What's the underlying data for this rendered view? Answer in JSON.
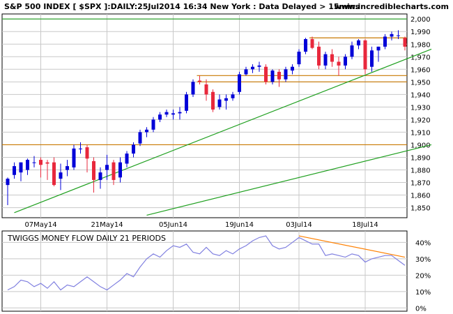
{
  "header": {
    "title": "S&P 500 INDEX [ $SPX ]:DAILY:25Jul2014 16:34 New York : Data Delayed > 15mins",
    "site": "www.incrediblecharts.com"
  },
  "colors": {
    "up": "#0000d8",
    "down": "#e8283c",
    "grid": "#c8c8c8",
    "support_line": "#c87800",
    "trend_line": "#20a020",
    "indicator_line": "#8080e0",
    "indicator_trend": "#ff8000"
  },
  "chart_data": [
    {
      "type": "candlestick",
      "ylim": [
        1842,
        2004
      ],
      "yticks": [
        1850,
        1860,
        1870,
        1880,
        1890,
        1900,
        1910,
        1920,
        1930,
        1940,
        1950,
        1960,
        1970,
        1980,
        1990,
        2000
      ],
      "ytick_labels": [
        "1,850",
        "1,860",
        "1,870",
        "1,880",
        "1,890",
        "1,900",
        "1,910",
        "1,920",
        "1,930",
        "1,940",
        "1,950",
        "1,960",
        "1,970",
        "1,980",
        "1,990",
        "2,000"
      ],
      "xtick_labels": [
        {
          "index": 5,
          "label": "07May14"
        },
        {
          "index": 15,
          "label": "21May14"
        },
        {
          "index": 25,
          "label": "05Jun14"
        },
        {
          "index": 35,
          "label": "19Jun14"
        },
        {
          "index": 44,
          "label": "03Jul14"
        },
        {
          "index": 54,
          "label": "18Jul14"
        }
      ],
      "dates_note": "",
      "candles": [
        {
          "o": 1868,
          "h": 1874,
          "l": 1852,
          "c": 1873
        },
        {
          "o": 1876,
          "h": 1886,
          "l": 1873,
          "c": 1883
        },
        {
          "o": 1878,
          "h": 1886,
          "l": 1871,
          "c": 1886
        },
        {
          "o": 1880,
          "h": 1889,
          "l": 1876,
          "c": 1888
        },
        {
          "o": 1886,
          "h": 1891,
          "l": 1882,
          "c": 1886
        },
        {
          "o": 1888,
          "h": 1890,
          "l": 1874,
          "c": 1884
        },
        {
          "o": 1886,
          "h": 1888,
          "l": 1872,
          "c": 1885
        },
        {
          "o": 1886,
          "h": 1890,
          "l": 1867,
          "c": 1868
        },
        {
          "o": 1873,
          "h": 1885,
          "l": 1864,
          "c": 1878
        },
        {
          "o": 1880,
          "h": 1888,
          "l": 1875,
          "c": 1883
        },
        {
          "o": 1882,
          "h": 1900,
          "l": 1880,
          "c": 1897
        },
        {
          "o": 1897,
          "h": 1902,
          "l": 1893,
          "c": 1897
        },
        {
          "o": 1898,
          "h": 1900,
          "l": 1878,
          "c": 1889
        },
        {
          "o": 1887,
          "h": 1890,
          "l": 1862,
          "c": 1872
        },
        {
          "o": 1872,
          "h": 1882,
          "l": 1865,
          "c": 1878
        },
        {
          "o": 1880,
          "h": 1892,
          "l": 1872,
          "c": 1884
        },
        {
          "o": 1886,
          "h": 1888,
          "l": 1868,
          "c": 1872
        },
        {
          "o": 1874,
          "h": 1890,
          "l": 1870,
          "c": 1886
        },
        {
          "o": 1885,
          "h": 1895,
          "l": 1882,
          "c": 1893
        },
        {
          "o": 1893,
          "h": 1902,
          "l": 1890,
          "c": 1900
        },
        {
          "o": 1901,
          "h": 1912,
          "l": 1899,
          "c": 1910
        },
        {
          "o": 1910,
          "h": 1914,
          "l": 1906,
          "c": 1912
        },
        {
          "o": 1912,
          "h": 1922,
          "l": 1910,
          "c": 1920
        },
        {
          "o": 1920,
          "h": 1926,
          "l": 1918,
          "c": 1924
        },
        {
          "o": 1924,
          "h": 1928,
          "l": 1922,
          "c": 1926
        },
        {
          "o": 1924,
          "h": 1928,
          "l": 1920,
          "c": 1925
        },
        {
          "o": 1925,
          "h": 1930,
          "l": 1920,
          "c": 1926
        },
        {
          "o": 1927,
          "h": 1942,
          "l": 1925,
          "c": 1940
        },
        {
          "o": 1940,
          "h": 1952,
          "l": 1938,
          "c": 1950
        },
        {
          "o": 1951,
          "h": 1955,
          "l": 1948,
          "c": 1950
        },
        {
          "o": 1948,
          "h": 1952,
          "l": 1935,
          "c": 1940
        },
        {
          "o": 1942,
          "h": 1944,
          "l": 1926,
          "c": 1928
        },
        {
          "o": 1930,
          "h": 1940,
          "l": 1928,
          "c": 1936
        },
        {
          "o": 1935,
          "h": 1940,
          "l": 1928,
          "c": 1937
        },
        {
          "o": 1937,
          "h": 1942,
          "l": 1935,
          "c": 1940
        },
        {
          "o": 1942,
          "h": 1958,
          "l": 1940,
          "c": 1956
        },
        {
          "o": 1956,
          "h": 1962,
          "l": 1955,
          "c": 1960
        },
        {
          "o": 1960,
          "h": 1964,
          "l": 1957,
          "c": 1962
        },
        {
          "o": 1962,
          "h": 1966,
          "l": 1958,
          "c": 1963
        },
        {
          "o": 1962,
          "h": 1964,
          "l": 1948,
          "c": 1950
        },
        {
          "o": 1950,
          "h": 1960,
          "l": 1948,
          "c": 1959
        },
        {
          "o": 1958,
          "h": 1960,
          "l": 1946,
          "c": 1952
        },
        {
          "o": 1952,
          "h": 1962,
          "l": 1950,
          "c": 1960
        },
        {
          "o": 1959,
          "h": 1964,
          "l": 1956,
          "c": 1962
        },
        {
          "o": 1964,
          "h": 1976,
          "l": 1962,
          "c": 1974
        },
        {
          "o": 1974,
          "h": 1985,
          "l": 1972,
          "c": 1984
        },
        {
          "o": 1984,
          "h": 1986,
          "l": 1976,
          "c": 1977
        },
        {
          "o": 1978,
          "h": 1982,
          "l": 1960,
          "c": 1963
        },
        {
          "o": 1963,
          "h": 1974,
          "l": 1960,
          "c": 1972
        },
        {
          "o": 1972,
          "h": 1976,
          "l": 1962,
          "c": 1966
        },
        {
          "o": 1966,
          "h": 1970,
          "l": 1955,
          "c": 1963
        },
        {
          "o": 1963,
          "h": 1972,
          "l": 1960,
          "c": 1970
        },
        {
          "o": 1970,
          "h": 1982,
          "l": 1968,
          "c": 1979
        },
        {
          "o": 1979,
          "h": 1984,
          "l": 1976,
          "c": 1983
        },
        {
          "o": 1983,
          "h": 1984,
          "l": 1956,
          "c": 1960
        },
        {
          "o": 1962,
          "h": 1978,
          "l": 1958,
          "c": 1975
        },
        {
          "o": 1975,
          "h": 1978,
          "l": 1966,
          "c": 1978
        },
        {
          "o": 1978,
          "h": 1988,
          "l": 1976,
          "c": 1986
        },
        {
          "o": 1986,
          "h": 1990,
          "l": 1983,
          "c": 1988
        },
        {
          "o": 1987,
          "h": 1991,
          "l": 1984,
          "c": 1987
        },
        {
          "o": 1985,
          "h": 1986,
          "l": 1975,
          "c": 1978
        }
      ],
      "horizontal_lines": [
        {
          "y": 2000,
          "color": "trend_line"
        },
        {
          "y": 1985,
          "from_index": 46,
          "color": "support_line"
        },
        {
          "y": 1955,
          "from_index": 29,
          "color": "support_line"
        },
        {
          "y": 1950,
          "from_index": 29,
          "color": "support_line"
        },
        {
          "y": 1900,
          "color": "support_line"
        }
      ],
      "trend_lines": [
        {
          "from": [
            1,
            1846
          ],
          "to": [
            64,
            1976
          ],
          "color": "trend_line"
        },
        {
          "from": [
            21,
            1844
          ],
          "to": [
            64,
            1900
          ],
          "color": "trend_line"
        }
      ]
    },
    {
      "type": "line",
      "title": "TWIGGS MONEY FLOW DAILY 21 PERIODS",
      "ylim": [
        -2,
        47
      ],
      "yticks": [
        0,
        10,
        20,
        30,
        40
      ],
      "ytick_labels": [
        "0%",
        "10%",
        "20%",
        "30%",
        "40%"
      ],
      "values": [
        11,
        13,
        17,
        16,
        13,
        15,
        12,
        16,
        11,
        14,
        13,
        16,
        19,
        16,
        13,
        11,
        14,
        17,
        21,
        19,
        25,
        30,
        33,
        31,
        35,
        38,
        37,
        39,
        34,
        33,
        37,
        33,
        32,
        35,
        33,
        36,
        38,
        41,
        43,
        44,
        38,
        36,
        37,
        40,
        43,
        41,
        39,
        39,
        32,
        33,
        32,
        31,
        33,
        32,
        28,
        30,
        31,
        32,
        32,
        29,
        26
      ],
      "trend_line": {
        "from": [
          44,
          44
        ],
        "to": [
          60,
          31
        ]
      }
    }
  ]
}
